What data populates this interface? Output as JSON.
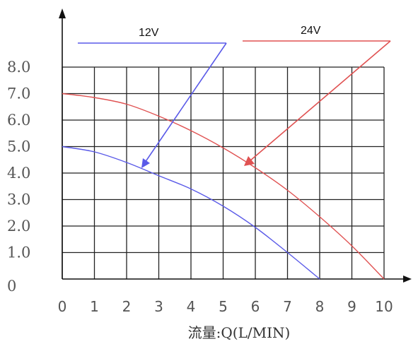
{
  "chart_data": {
    "type": "line",
    "title": "",
    "xlabel": "流量:Q(L/MIN)",
    "ylabel": "",
    "xlim": [
      0,
      10
    ],
    "ylim": [
      0,
      8
    ],
    "grid": true,
    "x_ticks": [
      "0",
      "1",
      "2",
      "3",
      "4",
      "5",
      "6",
      "7",
      "8",
      "9",
      "10"
    ],
    "y_ticks": [
      "0",
      "1.0",
      "2.0",
      "3.0",
      "4.0",
      "5.0",
      "6.0",
      "7.0",
      "8.0"
    ],
    "series": [
      {
        "name": "12V",
        "color": "#5a5ae8",
        "x": [
          0,
          1,
          2,
          3,
          4,
          5,
          6,
          7,
          8
        ],
        "y": [
          5.0,
          4.8,
          4.4,
          3.9,
          3.4,
          2.75,
          1.95,
          1.0,
          0
        ]
      },
      {
        "name": "24V",
        "color": "#e05252",
        "x": [
          0,
          1,
          2,
          3,
          4,
          5,
          6,
          7,
          8,
          9,
          10
        ],
        "y": [
          7.0,
          6.85,
          6.6,
          6.15,
          5.6,
          4.95,
          4.2,
          3.35,
          2.35,
          1.25,
          0
        ]
      }
    ]
  }
}
